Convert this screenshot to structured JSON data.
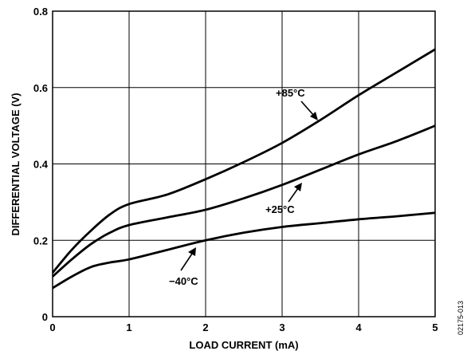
{
  "chart_data": {
    "type": "line",
    "xlabel": "LOAD CURRENT (mA)",
    "ylabel": "DIFFERENTIAL VOLTAGE (V)",
    "xlim": [
      0,
      5
    ],
    "ylim": [
      0,
      0.8
    ],
    "x_ticks": [
      0,
      1,
      2,
      3,
      4,
      5
    ],
    "y_ticks": [
      0,
      0.2,
      0.4,
      0.6,
      0.8
    ],
    "x_tick_labels": [
      "0",
      "1",
      "2",
      "3",
      "4",
      "5"
    ],
    "y_tick_labels": [
      "0",
      "0.2",
      "0.4",
      "0.6",
      "0.8"
    ],
    "grid": true,
    "line_color": "#000000",
    "series": [
      {
        "name": "+85°C",
        "x": [
          0,
          0.25,
          0.5,
          0.75,
          1.0,
          1.5,
          2.0,
          2.5,
          3.0,
          3.5,
          4.0,
          4.5,
          5.0
        ],
        "y": [
          0.115,
          0.175,
          0.225,
          0.268,
          0.295,
          0.32,
          0.36,
          0.405,
          0.455,
          0.515,
          0.58,
          0.64,
          0.7
        ]
      },
      {
        "name": "+25°C",
        "x": [
          0,
          0.25,
          0.5,
          0.75,
          1.0,
          1.5,
          2.0,
          2.5,
          3.0,
          3.5,
          4.0,
          4.5,
          5.0
        ],
        "y": [
          0.105,
          0.15,
          0.19,
          0.22,
          0.24,
          0.26,
          0.28,
          0.31,
          0.345,
          0.385,
          0.425,
          0.46,
          0.5
        ]
      },
      {
        "name": "−40°C",
        "x": [
          0,
          0.25,
          0.5,
          0.75,
          1.0,
          1.5,
          2.0,
          2.5,
          3.0,
          3.5,
          4.0,
          4.5,
          5.0
        ],
        "y": [
          0.075,
          0.105,
          0.13,
          0.142,
          0.15,
          0.175,
          0.2,
          0.22,
          0.235,
          0.245,
          0.255,
          0.263,
          0.272
        ]
      }
    ],
    "annotations": [
      {
        "text": "+85°C",
        "series": "+85°C"
      },
      {
        "text": "+25°C",
        "series": "+25°C"
      },
      {
        "text": "−40°C",
        "series": "−40°C"
      }
    ],
    "figure_id": "02175-013"
  }
}
